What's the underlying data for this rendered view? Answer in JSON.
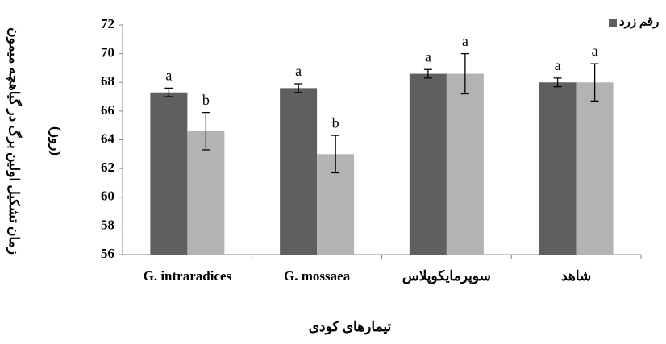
{
  "chart_data": {
    "type": "bar",
    "y_label": [
      "زمان تشکیل اولین برگ در گیاهچه میمون",
      "(روز)"
    ],
    "x_label": "تیمارهای کودی",
    "categories": [
      "G. intraradices",
      "G. mossaea",
      "سوپرمایکوپلاس",
      "شاهد"
    ],
    "series": [
      {
        "name": "رقم زرد",
        "color": "#5f5f5f",
        "values": [
          67.3,
          67.6,
          68.6,
          68.0
        ],
        "errors": [
          0.3,
          0.3,
          0.3,
          0.3
        ],
        "letters": [
          "a",
          "a",
          "a",
          "a"
        ]
      },
      {
        "color": "#b3b3b3",
        "values": [
          64.6,
          63.0,
          68.6,
          68.0
        ],
        "errors": [
          1.3,
          1.3,
          1.4,
          1.3
        ],
        "letters": [
          "b",
          "b",
          "a",
          "a"
        ]
      }
    ],
    "ylim": [
      56,
      72
    ],
    "yticks": [
      56,
      58,
      60,
      62,
      64,
      66,
      68,
      70,
      72
    ],
    "grid": false,
    "legend": "top-right"
  }
}
